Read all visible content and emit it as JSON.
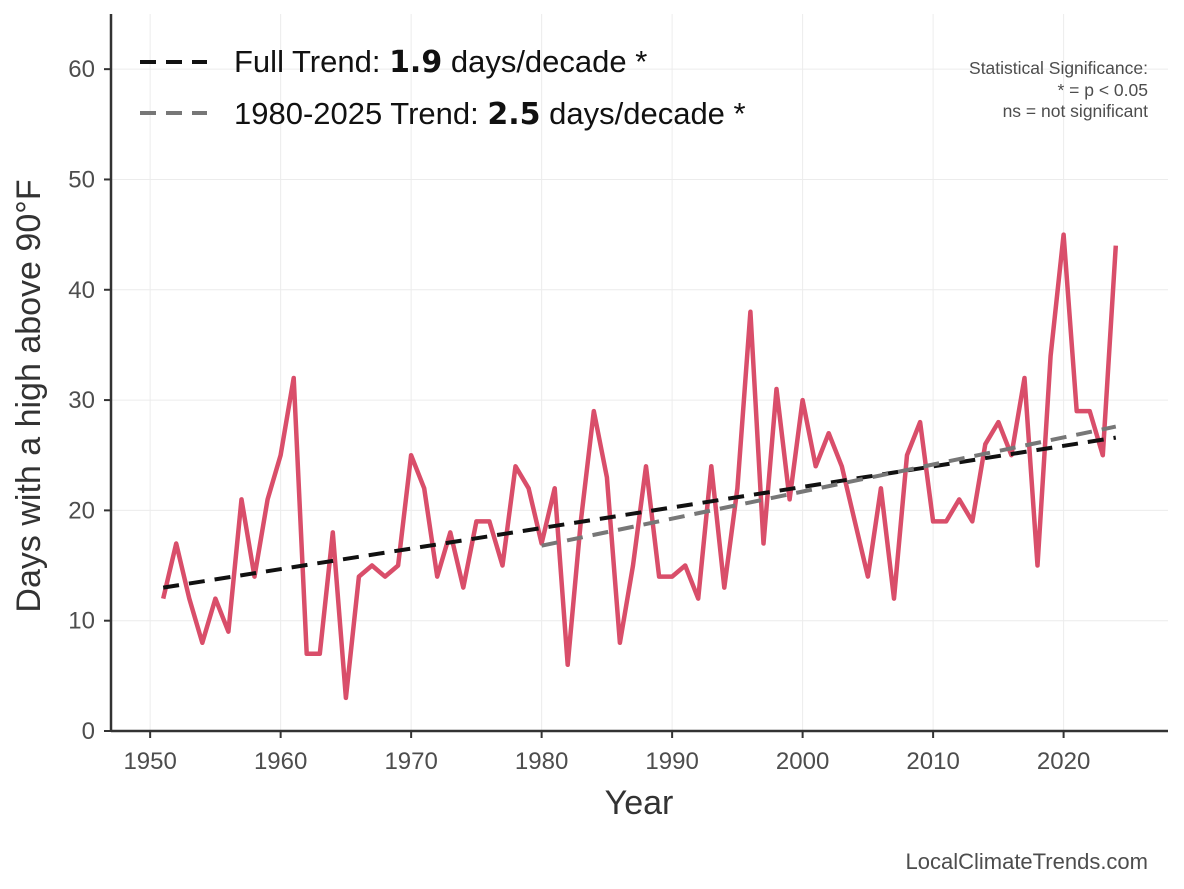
{
  "chart_data": {
    "type": "line",
    "xlabel": "Year",
    "ylabel": "Days with a high above 90°F",
    "xlim": [
      1947,
      2028
    ],
    "ylim": [
      0,
      65
    ],
    "xticks": [
      1950,
      1960,
      1970,
      1980,
      1990,
      2000,
      2010,
      2020
    ],
    "yticks": [
      0,
      10,
      20,
      30,
      40,
      50,
      60
    ],
    "grid": true,
    "legend_position": "top-left",
    "series": [
      {
        "color": "#d94e6a",
        "x": [
          1951,
          1952,
          1953,
          1954,
          1955,
          1956,
          1957,
          1958,
          1959,
          1960,
          1961,
          1962,
          1963,
          1964,
          1965,
          1966,
          1967,
          1968,
          1969,
          1970,
          1971,
          1972,
          1973,
          1974,
          1975,
          1976,
          1977,
          1978,
          1979,
          1980,
          1981,
          1982,
          1983,
          1984,
          1985,
          1986,
          1987,
          1988,
          1989,
          1990,
          1991,
          1992,
          1993,
          1994,
          1995,
          1996,
          1997,
          1998,
          1999,
          2000,
          2001,
          2002,
          2003,
          2004,
          2005,
          2006,
          2007,
          2008,
          2009,
          2010,
          2011,
          2012,
          2013,
          2014,
          2015,
          2016,
          2017,
          2018,
          2019,
          2020,
          2021,
          2022,
          2023,
          2024
        ],
        "values": [
          12,
          17,
          12,
          8,
          12,
          9,
          21,
          14,
          21,
          25,
          32,
          7,
          7,
          18,
          3,
          14,
          15,
          14,
          15,
          25,
          22,
          14,
          18,
          13,
          19,
          19,
          15,
          24,
          22,
          17,
          22,
          6,
          19,
          29,
          23,
          8,
          15,
          24,
          14,
          14,
          15,
          12,
          24,
          13,
          22,
          38,
          17,
          31,
          21,
          30,
          24,
          27,
          24,
          19,
          14,
          22,
          12,
          25,
          28,
          19,
          19,
          21,
          19,
          26,
          28,
          25,
          32,
          15,
          34,
          45,
          29,
          29,
          25,
          44
        ]
      },
      {
        "name": "Full Trend",
        "color": "#111111",
        "style": "dashed",
        "x": [
          1951,
          2024
        ],
        "values": [
          13.0,
          26.6
        ]
      },
      {
        "name": "1980-2025 Trend",
        "color": "#777777",
        "style": "dashed",
        "x": [
          1980,
          2024
        ],
        "values": [
          16.8,
          27.6
        ]
      }
    ],
    "legend": [
      {
        "label_prefix": "Full Trend: ",
        "label_value": "1.9",
        "label_suffix": " days/decade *"
      },
      {
        "label_prefix": "1980-2025 Trend: ",
        "label_value": "2.5",
        "label_suffix": " days/decade *"
      }
    ],
    "annotations": {
      "significance_title": "Statistical Significance:",
      "significance_line1": "* = p < 0.05",
      "significance_line2": "ns = not significant"
    },
    "credit": "LocalClimateTrends.com"
  }
}
